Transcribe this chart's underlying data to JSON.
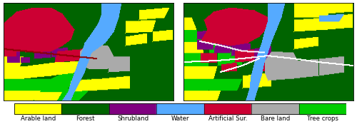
{
  "legend_items": [
    {
      "label": "Arable land",
      "color": "#FFFF00"
    },
    {
      "label": "Forest",
      "color": "#006400"
    },
    {
      "label": "Shrubland",
      "color": "#800080"
    },
    {
      "label": "Water",
      "color": "#55AAFF"
    },
    {
      "label": "Artificial Sur.",
      "color": "#CC0033"
    },
    {
      "label": "Bare land",
      "color": "#AAAAAA"
    },
    {
      "label": "Tree crops",
      "color": "#00CC00"
    }
  ],
  "label_fontsize": 6.2,
  "bg_color": "#FFFFFF",
  "fig_width": 5.0,
  "fig_height": 1.81,
  "forest": [
    0,
    100,
    0
  ],
  "arable": [
    255,
    255,
    0
  ],
  "shrub": [
    128,
    0,
    128
  ],
  "water": [
    85,
    170,
    255
  ],
  "artif": [
    204,
    0,
    51
  ],
  "bare": [
    170,
    170,
    170
  ],
  "tree": [
    0,
    204,
    0
  ]
}
